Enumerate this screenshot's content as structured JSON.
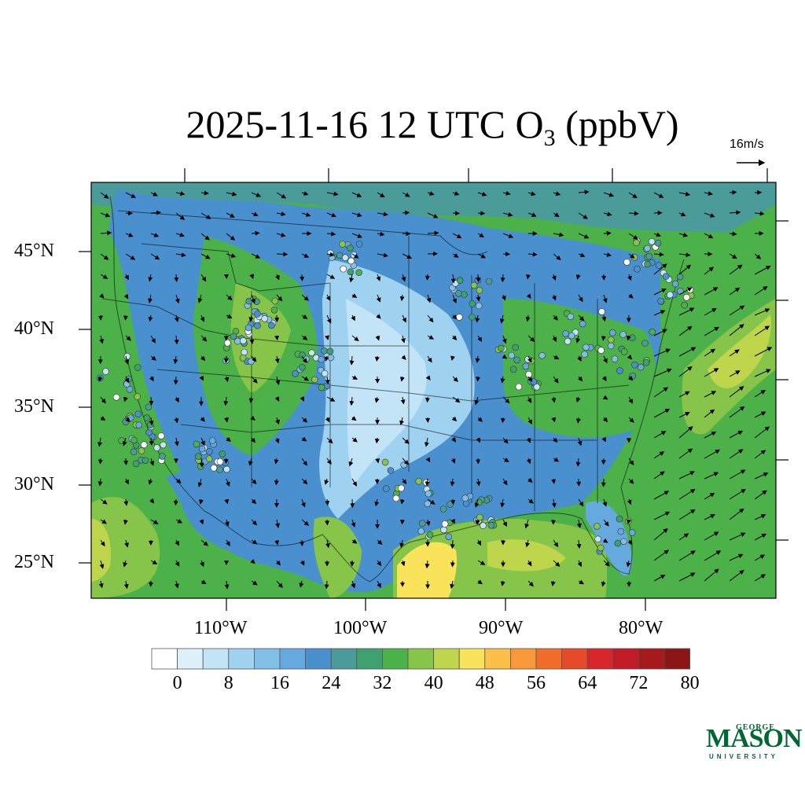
{
  "title": {
    "prefix": "2025-11-16 12 UTC O",
    "subscript": "3",
    "suffix": " (ppbV)"
  },
  "reference_vector": {
    "label": "16m/s"
  },
  "axes": {
    "lat_labels": [
      "45°N",
      "40°N",
      "35°N",
      "30°N",
      "25°N"
    ],
    "lon_labels": [
      "110°W",
      "100°W",
      "90°W",
      "80°W"
    ]
  },
  "colorbar": {
    "tick_labels": [
      "0",
      "8",
      "16",
      "24",
      "32",
      "40",
      "48",
      "56",
      "64",
      "72",
      "80"
    ],
    "colors": [
      "#ffffff",
      "#def0fa",
      "#c2e4f6",
      "#9fd2f0",
      "#82bfe6",
      "#65a9de",
      "#4a90cf",
      "#4a9b9a",
      "#3fa070",
      "#4bb148",
      "#86c44a",
      "#bfd64c",
      "#f9e35a",
      "#fbbf4a",
      "#f8983a",
      "#f26d2c",
      "#e64a2a",
      "#d8262a",
      "#c01b27",
      "#a6191d",
      "#8c1515"
    ]
  },
  "logo": {
    "top": "GEORGE",
    "main": "MASON",
    "bottom": "UNIVERSITY"
  }
}
